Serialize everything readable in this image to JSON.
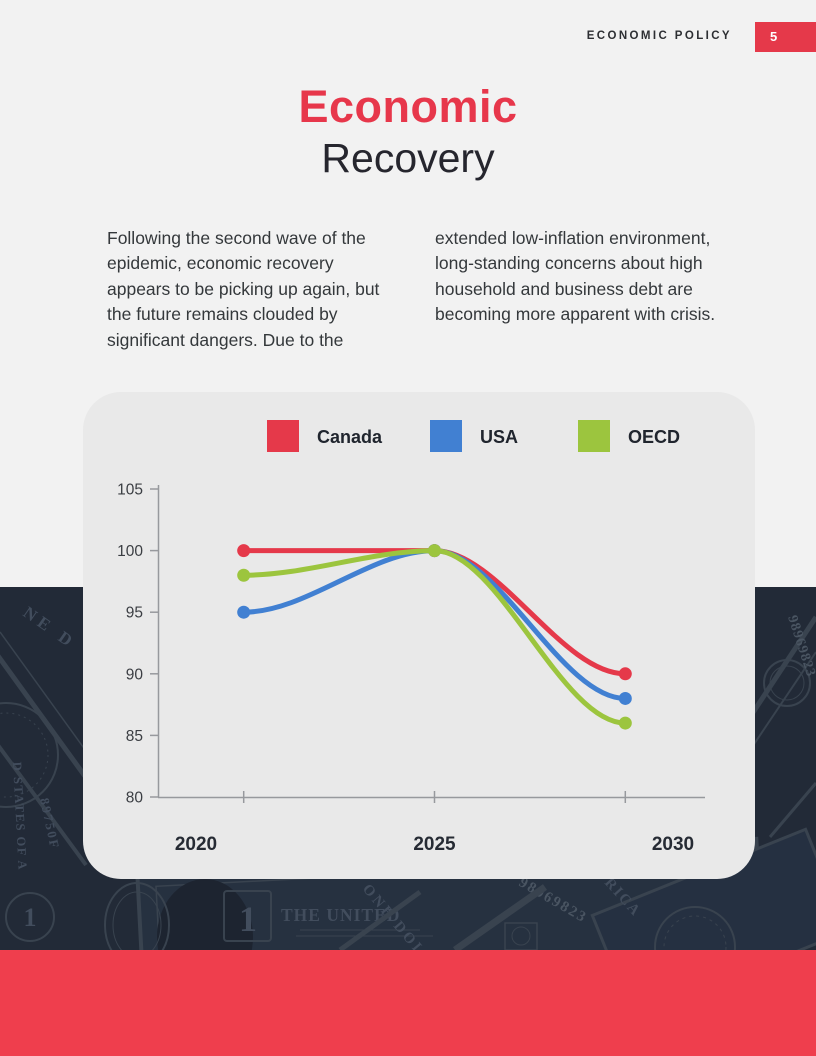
{
  "header": {
    "label": "ECONOMIC POLICY",
    "page_number": "5"
  },
  "title": {
    "line1": "Economic",
    "line2": "Recovery"
  },
  "intro": {
    "col1": "Following the second wave of the epidemic, economic recovery appears to be picking up again, but the future remains clouded by significant dangers. Due to the",
    "col2": "extended low-inflation environment, long-standing concerns about high household and business debt are becoming more apparent with crisis."
  },
  "chart_data": {
    "type": "line",
    "x": [
      2021,
      2025,
      2029
    ],
    "series": [
      {
        "name": "Canada",
        "color": "#e5394a",
        "values": [
          100,
          100,
          90
        ]
      },
      {
        "name": "USA",
        "color": "#4180d2",
        "values": [
          95,
          100,
          88
        ]
      },
      {
        "name": "OECD",
        "color": "#9cc53e",
        "values": [
          98,
          100,
          86
        ]
      }
    ],
    "y_ticks": [
      105,
      100,
      95,
      90,
      85,
      80
    ],
    "ylim": [
      80,
      105
    ],
    "xlim": [
      2020,
      2030
    ],
    "x_label_years": [
      2020,
      2025,
      2030
    ],
    "x_axis_labels": [
      "2020",
      "2025",
      "2030"
    ],
    "legend_position": "top",
    "grid": false,
    "point_markers": true
  },
  "background": {
    "texts": {
      "united": "THE UNITED",
      "one_dollar": "ONE DOLL",
      "serial_a": "98969823",
      "serial_b": "89750F",
      "states": "D STATES OF A",
      "rica": "RICA",
      "ne_d": "NE D",
      "one": "1"
    }
  },
  "colors": {
    "accent_red": "#e7374b",
    "footer_red": "#ef3e4d",
    "dark_navy": "#222a37",
    "page_bg": "#f2f2f2",
    "card_bg": "#e9e9e9",
    "usa_blue": "#4180d2",
    "oecd_green": "#9cc53e"
  }
}
